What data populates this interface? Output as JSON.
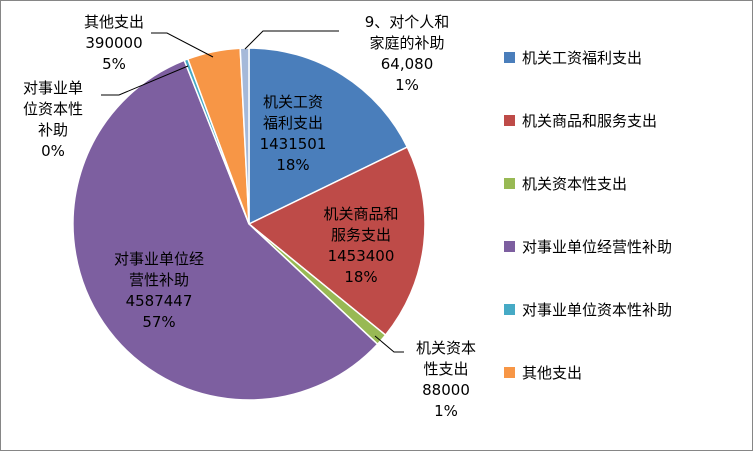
{
  "chart_data": {
    "type": "pie",
    "title": "",
    "categories": [
      "机关工资福利支出",
      "机关商品和服务支出",
      "机关资本性支出",
      "对事业单位经营性补助",
      "对事业单位资本性补助",
      "其他支出",
      "9、对个人和家庭的补助"
    ],
    "values": [
      1431501,
      1453400,
      88000,
      4587447,
      28000,
      390000,
      64080
    ],
    "data_labels": [
      {
        "lines": [
          "机关工资",
          "福利支出",
          "1431501",
          "18%"
        ]
      },
      {
        "lines": [
          "机关商品和",
          "服务支出",
          "1453400",
          "18%"
        ]
      },
      {
        "lines": [
          "机关资本",
          "性支出",
          "88000",
          "1%"
        ]
      },
      {
        "lines": [
          "对事业单位经",
          "营性补助",
          "4587447",
          "57%"
        ]
      },
      {
        "lines": [
          "对事业单",
          "位资本性",
          "补助",
          "0%"
        ]
      },
      {
        "lines": [
          "其他支出",
          "390000",
          "5%"
        ]
      },
      {
        "lines": [
          "9、对个人和",
          "家庭的补助",
          "64,080",
          "1%"
        ]
      }
    ],
    "colors": [
      "#4a7ebb",
      "#be4b48",
      "#98b954",
      "#7d5fa0",
      "#46aac5",
      "#f79646",
      "#a5b9d9"
    ],
    "legend": {
      "position": "right",
      "entries": [
        {
          "label": "机关工资福利支出",
          "color": "#4a7ebb"
        },
        {
          "label": "机关商品和服务支出",
          "color": "#be4b48"
        },
        {
          "label": "机关资本性支出",
          "color": "#98b954"
        },
        {
          "label": "对事业单位经营性补助",
          "color": "#7d5fa0"
        },
        {
          "label": "对事业单位资本性补助",
          "color": "#46aac5"
        },
        {
          "label": "其他支出",
          "color": "#f79646"
        }
      ]
    }
  }
}
